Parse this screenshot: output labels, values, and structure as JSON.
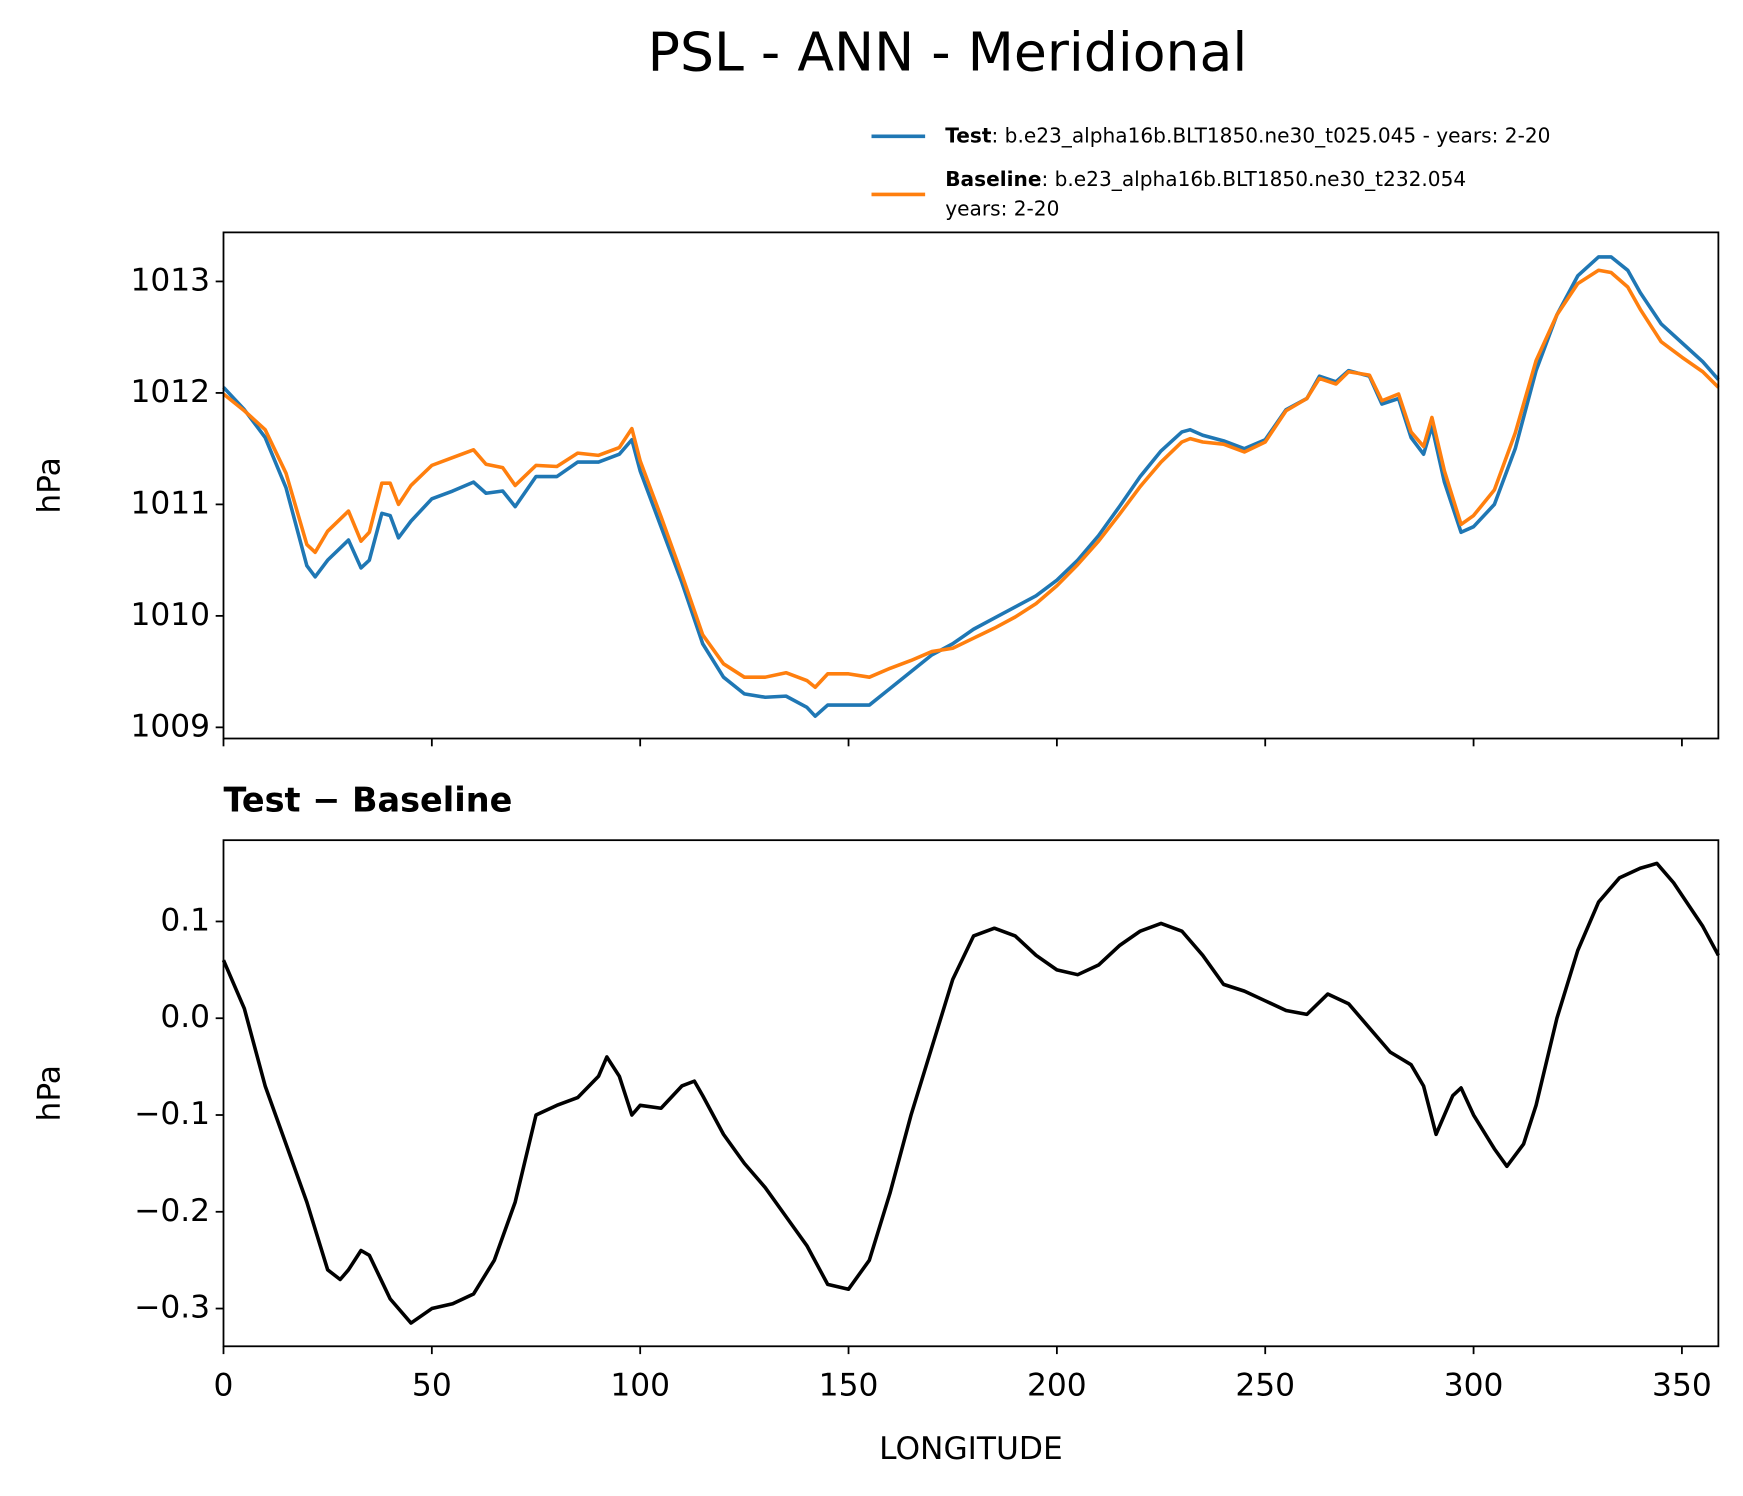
{
  "title": "PSL - ANN - Meridional",
  "chart_data": [
    {
      "type": "line",
      "ylabel": "hPa",
      "legend": "outside upper right",
      "x": [
        0,
        5,
        10,
        15,
        20,
        22,
        25,
        30,
        33,
        35,
        38,
        40,
        42,
        45,
        50,
        55,
        60,
        63,
        67,
        70,
        75,
        80,
        85,
        90,
        95,
        98,
        100,
        105,
        110,
        115,
        120,
        125,
        130,
        135,
        140,
        142,
        145,
        150,
        155,
        160,
        165,
        170,
        175,
        180,
        185,
        190,
        195,
        200,
        205,
        210,
        215,
        220,
        225,
        230,
        232,
        235,
        240,
        245,
        250,
        255,
        260,
        263,
        267,
        270,
        275,
        278,
        282,
        285,
        288,
        290,
        293,
        297,
        300,
        305,
        310,
        315,
        320,
        325,
        330,
        333,
        337,
        340,
        345,
        350,
        355,
        358.75
      ],
      "series": [
        {
          "name": "Test",
          "description": [
            ": b.e23_alpha16b.BLT1850.ne30_t025.045 - years: 2-20"
          ],
          "color": "#1f77b4",
          "values": [
            1012.05,
            1011.85,
            1011.6,
            1011.15,
            1010.45,
            1010.35,
            1010.5,
            1010.68,
            1010.43,
            1010.5,
            1010.92,
            1010.9,
            1010.7,
            1010.85,
            1011.05,
            1011.12,
            1011.2,
            1011.1,
            1011.12,
            1010.98,
            1011.25,
            1011.25,
            1011.38,
            1011.38,
            1011.45,
            1011.58,
            1011.3,
            1010.8,
            1010.3,
            1009.75,
            1009.45,
            1009.3,
            1009.27,
            1009.28,
            1009.18,
            1009.1,
            1009.2,
            1009.2,
            1009.2,
            1009.35,
            1009.5,
            1009.65,
            1009.75,
            1009.88,
            1009.98,
            1010.08,
            1010.18,
            1010.32,
            1010.5,
            1010.72,
            1010.98,
            1011.25,
            1011.48,
            1011.65,
            1011.67,
            1011.62,
            1011.57,
            1011.5,
            1011.58,
            1011.85,
            1011.95,
            1012.15,
            1012.1,
            1012.2,
            1012.15,
            1011.9,
            1011.95,
            1011.6,
            1011.45,
            1011.7,
            1011.2,
            1010.75,
            1010.8,
            1011.0,
            1011.5,
            1012.2,
            1012.7,
            1013.05,
            1013.22,
            1013.22,
            1013.1,
            1012.9,
            1012.62,
            1012.45,
            1012.28,
            1012.12
          ]
        },
        {
          "name": "Baseline",
          "description": [
            ": b.e23_alpha16b.BLT1850.ne30_t232.054",
            "years: 2-20"
          ],
          "color": "#ff7f0e",
          "values": [
            1011.99,
            1011.84,
            1011.67,
            1011.28,
            1010.64,
            1010.57,
            1010.76,
            1010.94,
            1010.67,
            1010.75,
            1011.19,
            1011.19,
            1011.0,
            1011.17,
            1011.35,
            1011.42,
            1011.49,
            1011.36,
            1011.33,
            1011.17,
            1011.35,
            1011.34,
            1011.46,
            1011.44,
            1011.51,
            1011.68,
            1011.39,
            1010.89,
            1010.37,
            1009.83,
            1009.57,
            1009.45,
            1009.45,
            1009.49,
            1009.42,
            1009.36,
            1009.48,
            1009.48,
            1009.45,
            1009.53,
            1009.6,
            1009.68,
            1009.71,
            1009.8,
            1009.89,
            1009.99,
            1010.11,
            1010.27,
            1010.46,
            1010.67,
            1010.91,
            1011.16,
            1011.38,
            1011.56,
            1011.59,
            1011.56,
            1011.54,
            1011.47,
            1011.56,
            1011.84,
            1011.95,
            1012.13,
            1012.08,
            1012.19,
            1012.16,
            1011.93,
            1011.99,
            1011.65,
            1011.52,
            1011.78,
            1011.3,
            1010.82,
            1010.9,
            1011.13,
            1011.64,
            1012.29,
            1012.7,
            1012.98,
            1013.1,
            1013.08,
            1012.95,
            1012.75,
            1012.46,
            1012.32,
            1012.19,
            1012.05
          ]
        }
      ],
      "xlim": [
        0,
        358.75
      ],
      "ylim": [
        1008.9,
        1013.44
      ],
      "xticks": [
        0,
        50,
        100,
        150,
        200,
        250,
        300,
        350
      ],
      "show_xtick_labels": false,
      "yticks": [
        1009,
        1010,
        1011,
        1012,
        1013
      ]
    },
    {
      "type": "line",
      "title": "Test − Baseline",
      "ylabel": "hPa",
      "xlabel": "LONGITUDE",
      "x": [
        0,
        5,
        10,
        15,
        20,
        25,
        28,
        30,
        33,
        35,
        40,
        45,
        50,
        55,
        60,
        65,
        70,
        75,
        80,
        85,
        90,
        92,
        95,
        98,
        100,
        105,
        110,
        113,
        115,
        120,
        125,
        130,
        135,
        140,
        145,
        150,
        155,
        160,
        165,
        170,
        175,
        180,
        185,
        190,
        195,
        200,
        205,
        210,
        215,
        220,
        225,
        230,
        235,
        240,
        245,
        250,
        255,
        260,
        265,
        270,
        275,
        280,
        285,
        288,
        291,
        295,
        297,
        300,
        305,
        308,
        312,
        315,
        320,
        325,
        330,
        335,
        340,
        344,
        348,
        355,
        358.75
      ],
      "series": [
        {
          "color": "#000000",
          "values": [
            0.06,
            0.01,
            -0.07,
            -0.13,
            -0.19,
            -0.26,
            -0.27,
            -0.26,
            -0.24,
            -0.245,
            -0.29,
            -0.315,
            -0.3,
            -0.295,
            -0.285,
            -0.25,
            -0.19,
            -0.1,
            -0.09,
            -0.082,
            -0.06,
            -0.04,
            -0.06,
            -0.1,
            -0.09,
            -0.093,
            -0.07,
            -0.065,
            -0.08,
            -0.12,
            -0.15,
            -0.175,
            -0.205,
            -0.235,
            -0.275,
            -0.28,
            -0.25,
            -0.18,
            -0.1,
            -0.03,
            0.04,
            0.085,
            0.093,
            0.085,
            0.065,
            0.05,
            0.045,
            0.055,
            0.075,
            0.09,
            0.098,
            0.09,
            0.065,
            0.035,
            0.028,
            0.018,
            0.008,
            0.004,
            0.025,
            0.015,
            -0.01,
            -0.035,
            -0.048,
            -0.07,
            -0.12,
            -0.08,
            -0.072,
            -0.1,
            -0.135,
            -0.153,
            -0.13,
            -0.09,
            0.0,
            0.07,
            0.12,
            0.145,
            0.155,
            0.16,
            0.14,
            0.095,
            0.065
          ]
        }
      ],
      "xlim": [
        0,
        358.75
      ],
      "ylim": [
        -0.339,
        0.184
      ],
      "xticks": [
        0,
        50,
        100,
        150,
        200,
        250,
        300,
        350
      ],
      "show_xtick_labels": true,
      "yticks": [
        {
          "value": -0.3,
          "label": "−0.3"
        },
        {
          "value": -0.2,
          "label": "−0.2"
        },
        {
          "value": -0.1,
          "label": "−0.1"
        },
        {
          "value": 0,
          "label": "0.0"
        },
        0.1
      ]
    }
  ]
}
